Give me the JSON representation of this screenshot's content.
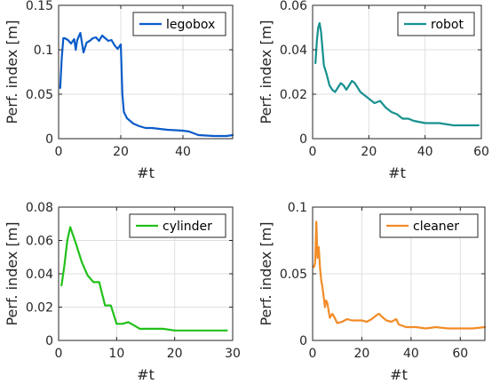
{
  "chart_data": [
    {
      "type": "line",
      "legend_placement": "top-right",
      "grid": true,
      "xlabel": "#t",
      "ylabel": "Perf. index [m]",
      "xlim": [
        0,
        56
      ],
      "ylim": [
        0,
        0.15
      ],
      "xticks": [
        0,
        20,
        40
      ],
      "xtick_labels": [
        "0",
        "20",
        "40"
      ],
      "yticks": [
        0,
        0.05,
        0.1,
        0.15
      ],
      "ytick_labels": [
        "0",
        "0.05",
        "0.1",
        "0.15"
      ],
      "series": [
        {
          "name": "legobox",
          "color": "#0b5cc9",
          "x": [
            0.5,
            1,
            1.5,
            2,
            3,
            4,
            5,
            5.5,
            6,
            7,
            8,
            9,
            10,
            11,
            12,
            13,
            14,
            15,
            16,
            17,
            18,
            19,
            20,
            20.5,
            21,
            22,
            24,
            26,
            28,
            30,
            35,
            40,
            42,
            45,
            50,
            54,
            56
          ],
          "y": [
            0.057,
            0.09,
            0.113,
            0.113,
            0.111,
            0.107,
            0.112,
            0.1,
            0.111,
            0.119,
            0.097,
            0.108,
            0.11,
            0.113,
            0.114,
            0.11,
            0.116,
            0.113,
            0.11,
            0.111,
            0.105,
            0.101,
            0.106,
            0.05,
            0.03,
            0.023,
            0.017,
            0.014,
            0.012,
            0.012,
            0.01,
            0.009,
            0.008,
            0.004,
            0.003,
            0.003,
            0.004
          ]
        }
      ]
    },
    {
      "type": "line",
      "legend_placement": "top-right",
      "grid": true,
      "xlabel": "#t",
      "ylabel": "Perf. index [m]",
      "xlim": [
        0,
        60
      ],
      "ylim": [
        0,
        0.06
      ],
      "xticks": [
        0,
        20,
        40,
        60
      ],
      "xtick_labels": [
        "0",
        "20",
        "40",
        "60"
      ],
      "yticks": [
        0,
        0.02,
        0.04,
        0.06
      ],
      "ytick_labels": [
        "0",
        "0.02",
        "0.04",
        "0.06"
      ],
      "series": [
        {
          "name": "robot",
          "color": "#17918f",
          "x": [
            1,
            1.5,
            2,
            2.5,
            3,
            4,
            5,
            6,
            7,
            8,
            9,
            10,
            11,
            12,
            13,
            14,
            15,
            16,
            17,
            18,
            20,
            22,
            24,
            26,
            28,
            30,
            32,
            34,
            36,
            40,
            45,
            50,
            55,
            59
          ],
          "y": [
            0.034,
            0.044,
            0.05,
            0.052,
            0.048,
            0.033,
            0.029,
            0.024,
            0.022,
            0.021,
            0.023,
            0.025,
            0.024,
            0.022,
            0.024,
            0.026,
            0.025,
            0.023,
            0.021,
            0.02,
            0.018,
            0.016,
            0.017,
            0.014,
            0.012,
            0.011,
            0.009,
            0.009,
            0.008,
            0.007,
            0.007,
            0.006,
            0.006,
            0.006
          ]
        }
      ]
    },
    {
      "type": "line",
      "legend_placement": "top-right",
      "grid": true,
      "xlabel": "#t",
      "ylabel": "Perf. index [m]",
      "xlim": [
        0,
        30
      ],
      "ylim": [
        0,
        0.08
      ],
      "xticks": [
        0,
        10,
        20,
        30
      ],
      "xtick_labels": [
        "0",
        "10",
        "20",
        "30"
      ],
      "yticks": [
        0,
        0.02,
        0.04,
        0.06,
        0.08
      ],
      "ytick_labels": [
        "0",
        "0.02",
        "0.04",
        "0.06",
        "0.08"
      ],
      "series": [
        {
          "name": "cylinder",
          "color": "#22c01a",
          "x": [
            0.5,
            1,
            1.5,
            2,
            3,
            4,
            5,
            6,
            7,
            7.5,
            8,
            9,
            10,
            11,
            12,
            13,
            14,
            16,
            18,
            20,
            22,
            24,
            26,
            28,
            29
          ],
          "y": [
            0.033,
            0.045,
            0.06,
            0.068,
            0.058,
            0.047,
            0.039,
            0.035,
            0.035,
            0.028,
            0.021,
            0.021,
            0.01,
            0.01,
            0.011,
            0.009,
            0.007,
            0.007,
            0.007,
            0.006,
            0.006,
            0.006,
            0.006,
            0.006,
            0.006
          ]
        }
      ]
    },
    {
      "type": "line",
      "legend_placement": "top-right",
      "grid": true,
      "xlabel": "#t",
      "ylabel": "Perf. index [m]",
      "xlim": [
        0,
        70
      ],
      "ylim": [
        0,
        0.1
      ],
      "xticks": [
        0,
        20,
        40,
        60
      ],
      "xtick_labels": [
        "0",
        "20",
        "40",
        "60"
      ],
      "yticks": [
        0,
        0.05,
        0.1
      ],
      "ytick_labels": [
        "0",
        "0.05",
        "0.1"
      ],
      "series": [
        {
          "name": "cleaner",
          "color": "#f28c28",
          "x": [
            0.5,
            1,
            1.5,
            2,
            2.5,
            3,
            3.5,
            4,
            5,
            5.5,
            6,
            7,
            8,
            9,
            10,
            12,
            14,
            16,
            18,
            20,
            22,
            24,
            26,
            27,
            28,
            30,
            32,
            34,
            35,
            38,
            42,
            46,
            50,
            55,
            60,
            65,
            70
          ],
          "y": [
            0.055,
            0.058,
            0.089,
            0.062,
            0.07,
            0.055,
            0.045,
            0.04,
            0.025,
            0.03,
            0.028,
            0.017,
            0.02,
            0.017,
            0.013,
            0.014,
            0.016,
            0.015,
            0.015,
            0.015,
            0.014,
            0.016,
            0.019,
            0.02,
            0.018,
            0.015,
            0.014,
            0.016,
            0.012,
            0.01,
            0.01,
            0.009,
            0.01,
            0.009,
            0.009,
            0.009,
            0.01
          ]
        }
      ]
    }
  ]
}
